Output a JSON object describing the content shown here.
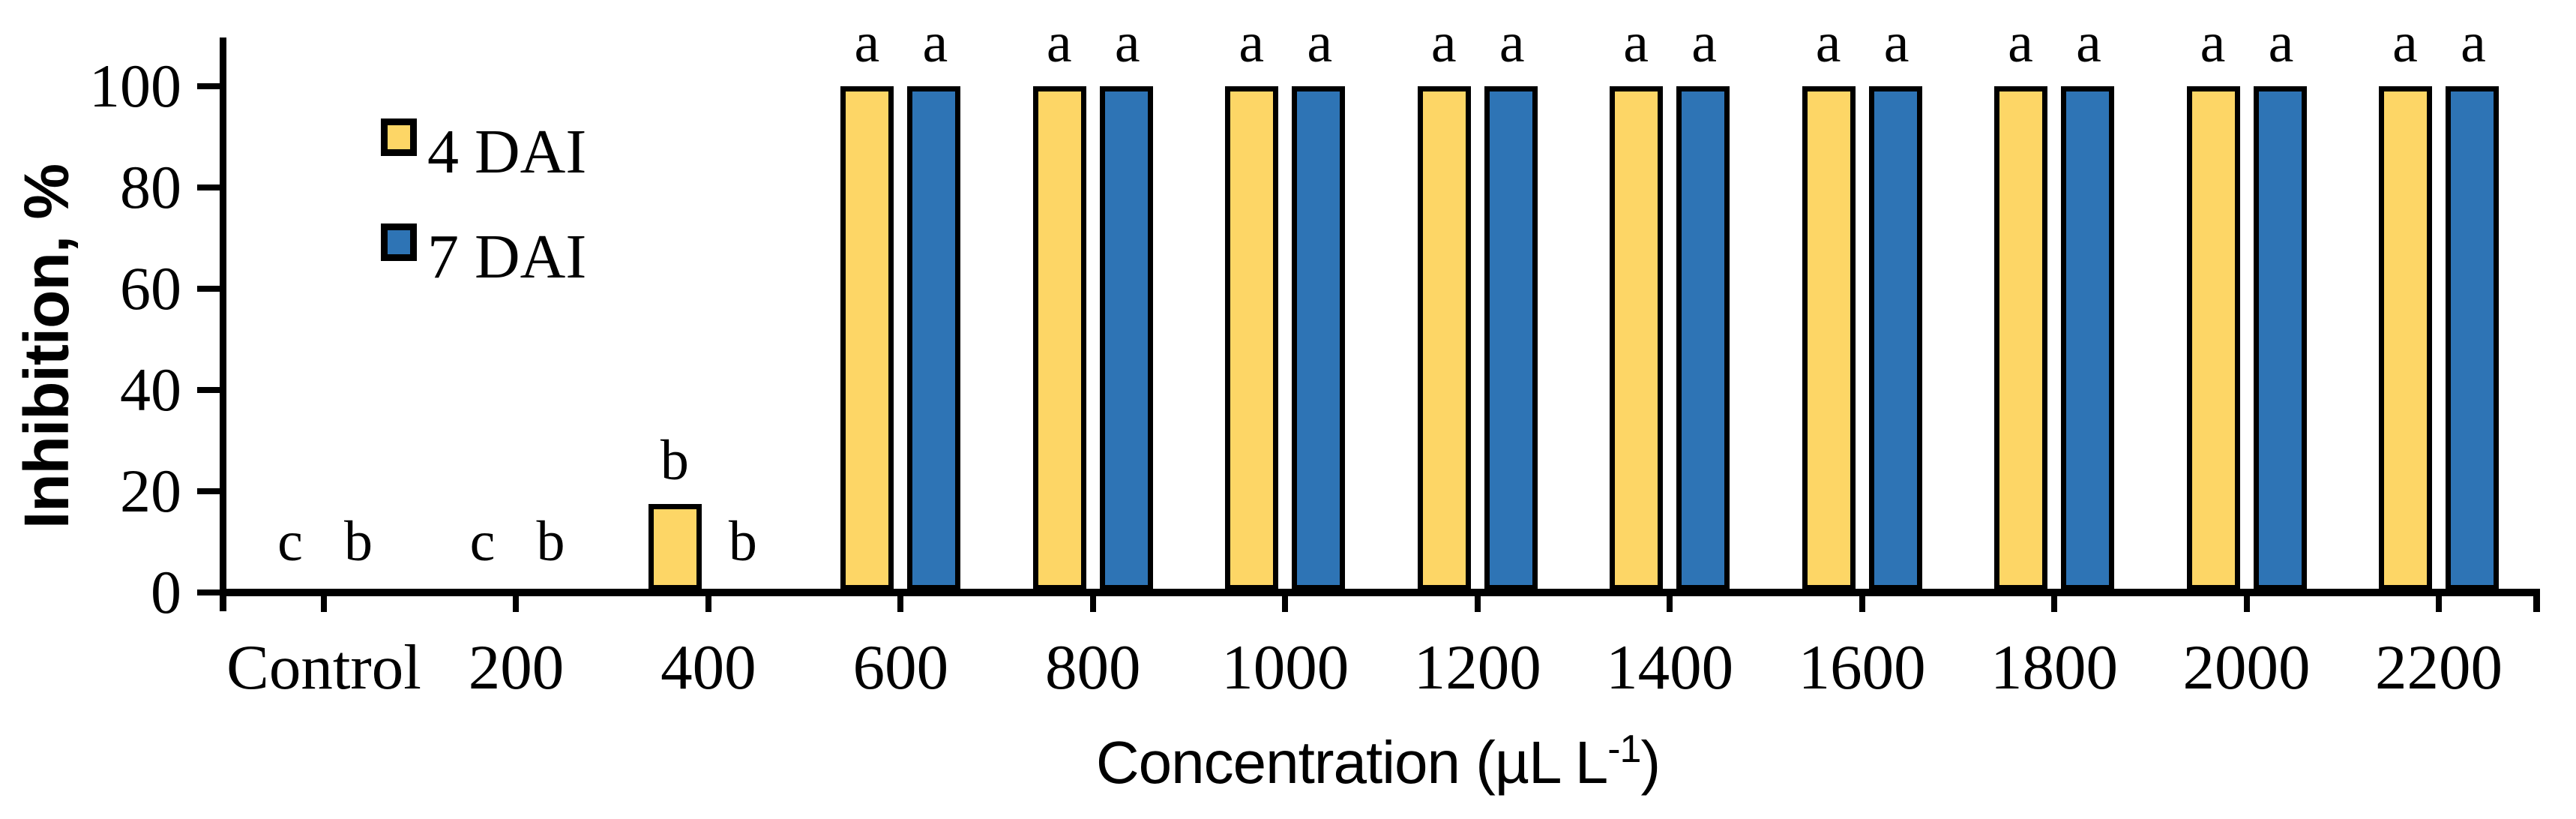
{
  "chart_data": {
    "type": "bar",
    "title": "",
    "categories": [
      "Control",
      "200",
      "400",
      "600",
      "800",
      "1000",
      "1200",
      "1400",
      "1600",
      "1800",
      "2000",
      "2200"
    ],
    "series": [
      {
        "name": "4 DAI",
        "color": "#FDD666",
        "values": [
          0,
          0,
          17.5,
          100,
          100,
          100,
          100,
          100,
          100,
          100,
          100,
          100
        ],
        "letters": [
          "c",
          "c",
          "b",
          "a",
          "a",
          "a",
          "a",
          "a",
          "a",
          "a",
          "a",
          "a"
        ]
      },
      {
        "name": "7 DAI",
        "color": "#2E74B5",
        "values": [
          0,
          0,
          0,
          100,
          100,
          100,
          100,
          100,
          100,
          100,
          100,
          100
        ],
        "letters": [
          "b",
          "b",
          "b",
          "a",
          "a",
          "a",
          "a",
          "a",
          "a",
          "a",
          "a",
          "a"
        ]
      }
    ],
    "bar_outline_color": "#000000",
    "xlabel": "Concentration (µL L⁻¹)",
    "xlabel_parts": {
      "main": "Concentration (µL L",
      "sup": "-1",
      "end": ")"
    },
    "ylabel": "Inhibition, %",
    "ylim": [
      0,
      110
    ],
    "yticks": [
      0,
      20,
      40,
      60,
      80,
      100
    ],
    "grid": false,
    "legend_position": "inside-top-left"
  }
}
